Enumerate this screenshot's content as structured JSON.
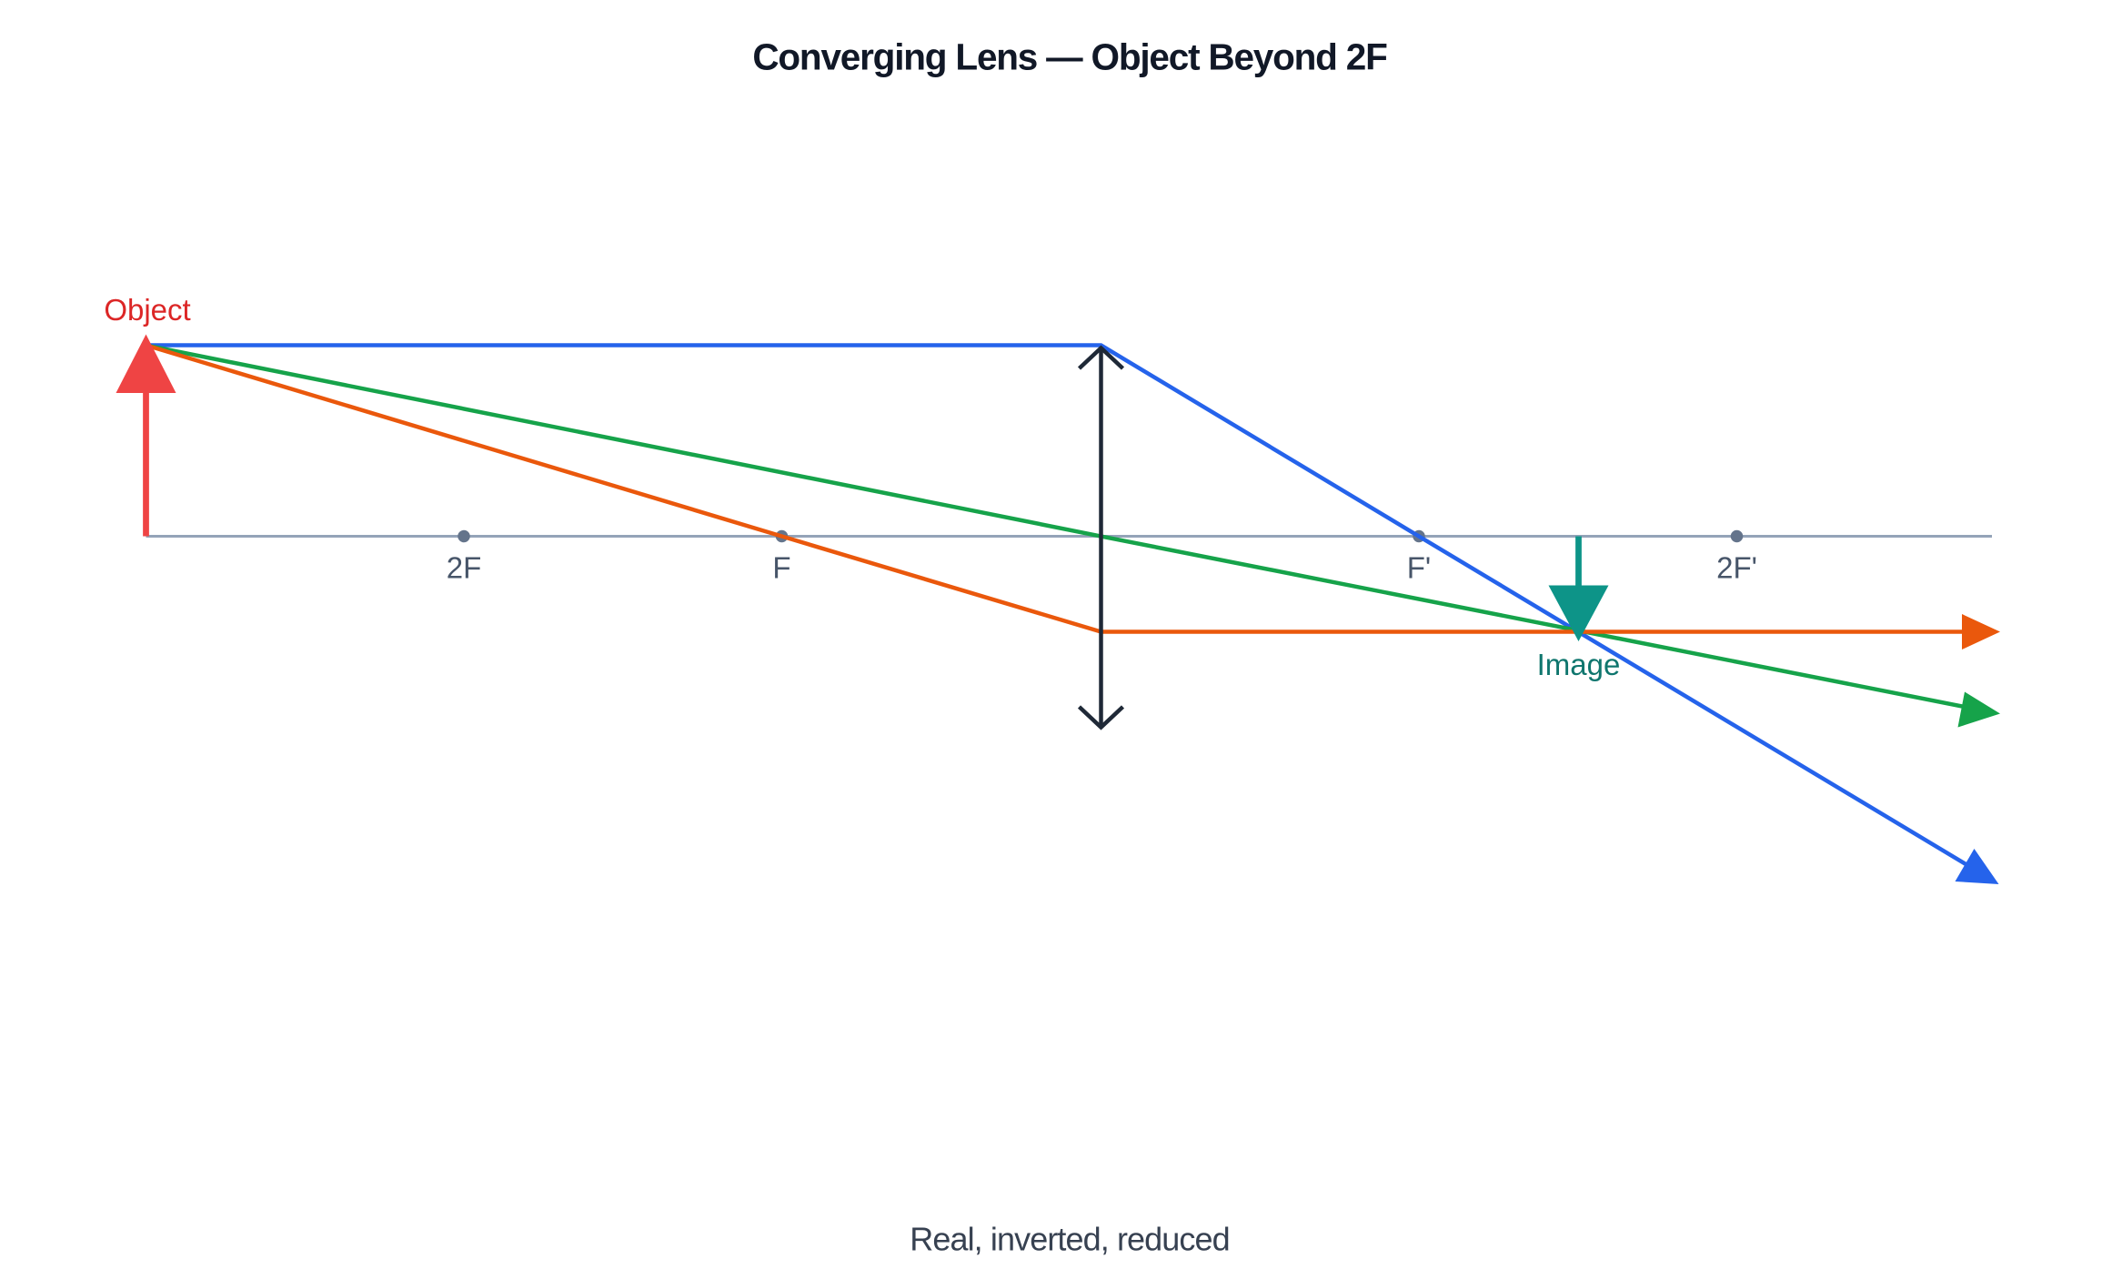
{
  "header": {
    "title": "Converging Lens — Object Beyond 2F"
  },
  "labels": {
    "object": "Object",
    "image": "Image",
    "two_f": "2F",
    "f": "F",
    "f_prime": "F'",
    "two_f_prime": "2F'"
  },
  "caption": "Real, inverted, reduced"
}
